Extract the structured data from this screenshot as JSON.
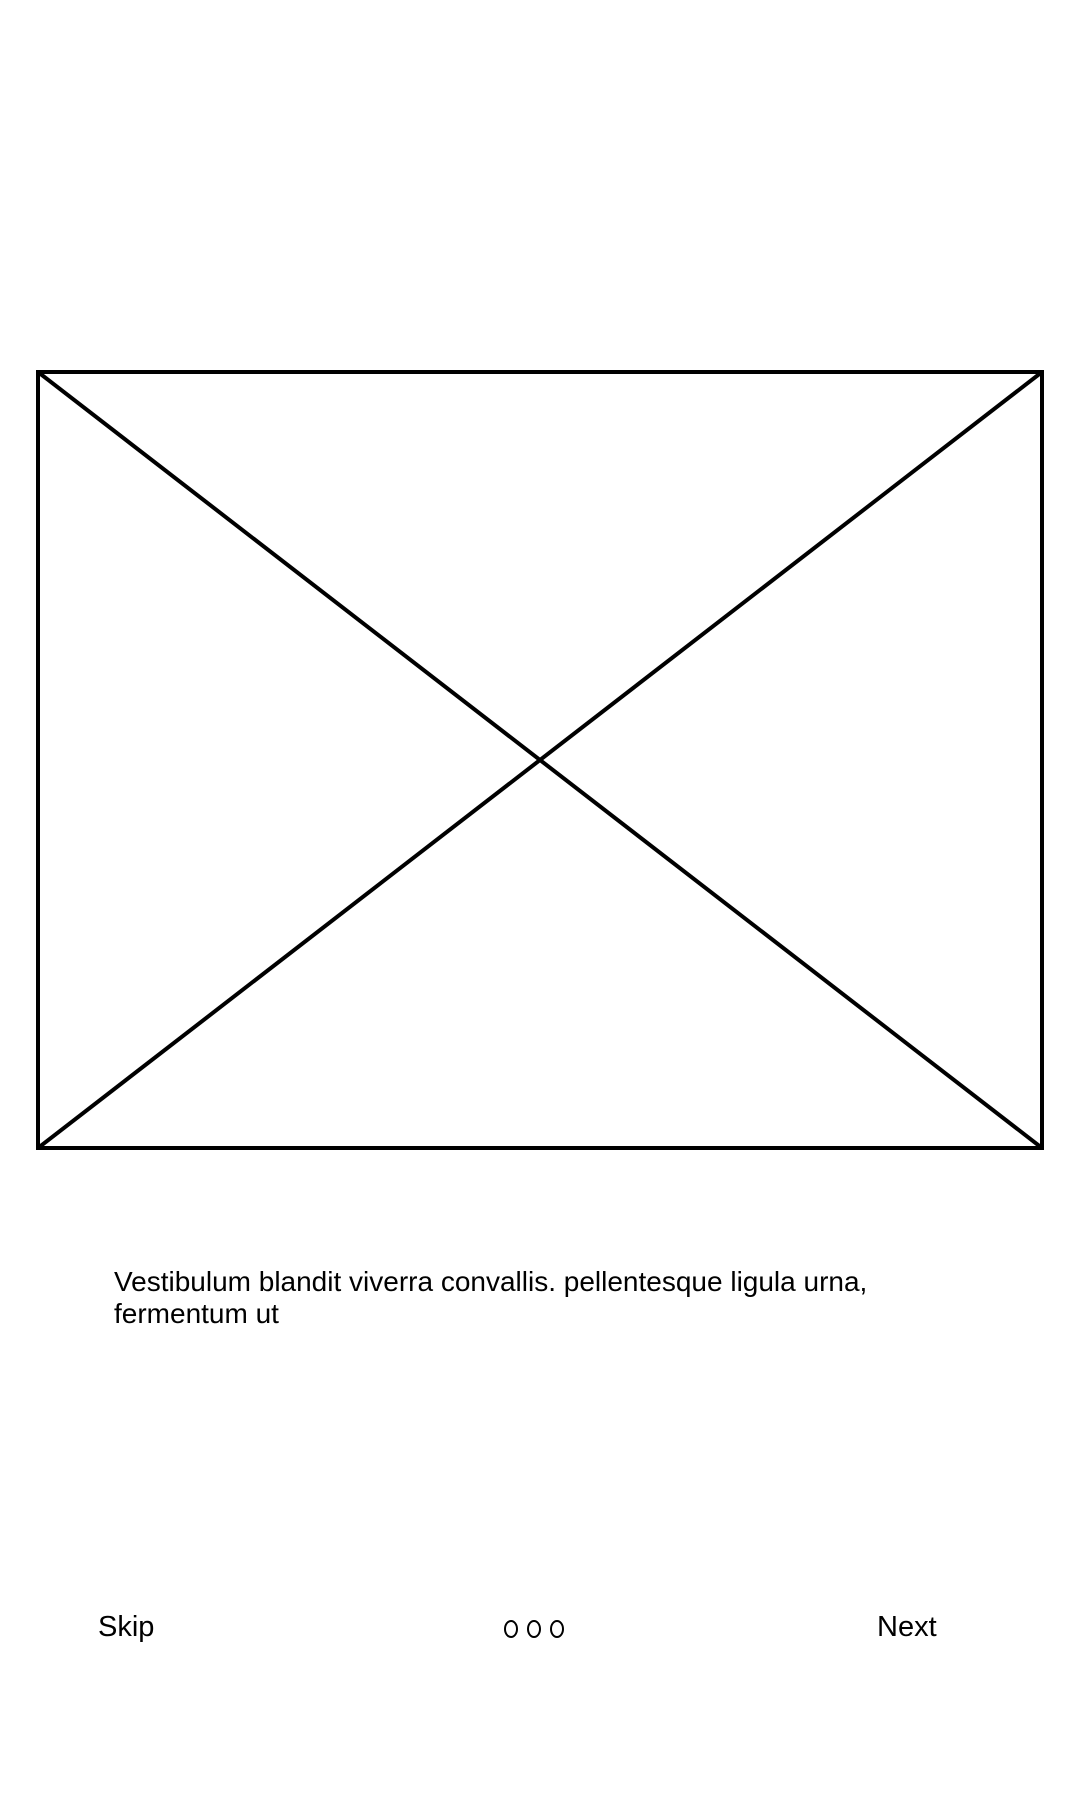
{
  "hero": {
    "icon": "image-placeholder-icon"
  },
  "description": {
    "text": "Vestibulum blandit viverra convallis. pellentesque ligula urna, fermentum ut"
  },
  "navigation": {
    "skip_label": "Skip",
    "next_label": "Next",
    "page_count": 3,
    "current_page": null
  },
  "colors": {
    "background": "#ffffff",
    "foreground": "#000000"
  }
}
